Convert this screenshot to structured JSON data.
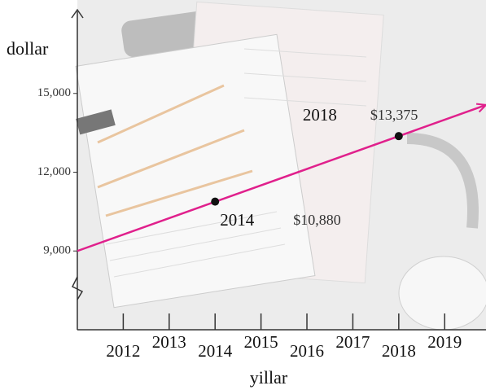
{
  "chart_data": {
    "type": "line",
    "y_label": "dollar",
    "x_label": "yillar",
    "xlim": [
      2011,
      2019.9
    ],
    "xticks": [
      2012,
      2013,
      2014,
      2015,
      2016,
      2017,
      2018,
      2019
    ],
    "ylim": [
      6000,
      18000
    ],
    "yticks": [
      {
        "value": 9000,
        "label": "9,000"
      },
      {
        "value": 12000,
        "label": "12,000"
      },
      {
        "value": 15000,
        "label": "15,000"
      }
    ],
    "series": [
      {
        "color": "#e0208c",
        "x": [
          2011,
          2019.9
        ],
        "values": [
          9000,
          14560
        ]
      }
    ],
    "points": {
      "color": "#111111",
      "x": [
        2014,
        2018
      ],
      "values": [
        10880,
        13375
      ],
      "value_labels": [
        "$10,880",
        "$13,375"
      ]
    }
  }
}
